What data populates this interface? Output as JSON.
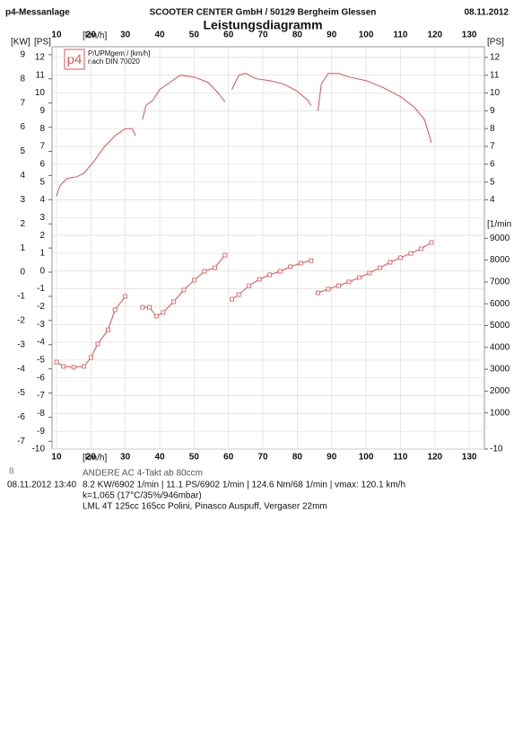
{
  "header": {
    "left": "p4-Messanlage",
    "center": "SCOOTER CENTER GmbH / 50129 Bergheim Glessen",
    "date": "08.11.2012"
  },
  "chart_data": {
    "type": "line",
    "title": "Leistungsdiagramm",
    "kw_label": "[KW]",
    "ps_label": "[PS]",
    "x_label": "[km/h]",
    "right_ps_label": "[PS]",
    "rpm_label": "[1/min",
    "legend": {
      "logo": "p4",
      "line1": "P/UPMgem / [km/h]",
      "line2": "nach DIN 70020"
    },
    "xlim": [
      8.7,
      134.4
    ],
    "xticks": [
      10,
      20,
      30,
      40,
      50,
      60,
      70,
      80,
      90,
      100,
      110,
      120,
      130
    ],
    "ylim": [
      -10,
      12.6
    ],
    "yticks": [
      -10,
      -9,
      -8,
      -7,
      -6,
      -5,
      -4,
      -3,
      -2,
      -1,
      0,
      1,
      2,
      3,
      4,
      5,
      6,
      7,
      8,
      9,
      10,
      11,
      12
    ],
    "right_yticks": [
      4,
      5,
      6,
      7,
      8,
      9,
      10,
      11,
      12,
      -10
    ],
    "kwlim": [
      -7.32,
      9.33
    ],
    "kwticks": [
      -7,
      -6,
      -5,
      -4,
      -3,
      -2,
      -1,
      0,
      1,
      2,
      3,
      4,
      5,
      6,
      7,
      8,
      9
    ],
    "y2lim": [
      -660,
      17780
    ],
    "y2ticks": [
      1000,
      2000,
      3000,
      4000,
      5000,
      6000,
      7000,
      8000,
      9000
    ],
    "grid": true,
    "series": [
      {
        "name": "P",
        "color": "#e0504f",
        "x": [
          10,
          11,
          13,
          16,
          18,
          21,
          24,
          27,
          30,
          32,
          33,
          34,
          35,
          36,
          38,
          40,
          43,
          46,
          50,
          54,
          57,
          59,
          60,
          61,
          63,
          65,
          68,
          72,
          76,
          80,
          83,
          84,
          85,
          86,
          87,
          89,
          92,
          95,
          100,
          105,
          110,
          114,
          117,
          119
        ],
        "values": [
          4.2,
          4.8,
          5.2,
          5.3,
          5.5,
          6.2,
          7,
          7.6,
          8,
          8,
          7.6,
          null,
          8.5,
          9.3,
          9.6,
          10.2,
          10.6,
          11,
          10.9,
          10.6,
          10,
          9.5,
          null,
          10.2,
          11,
          11.1,
          10.8,
          10.7,
          10.5,
          10.1,
          9.6,
          9.3,
          null,
          9,
          10.5,
          11.1,
          11.1,
          10.9,
          10.7,
          10.3,
          9.8,
          9.2,
          8.5,
          7.2
        ]
      },
      {
        "name": "UPM",
        "color": "#e0504f",
        "axis": "y2",
        "x": [
          10,
          12,
          15,
          18,
          20,
          22,
          25,
          27,
          30,
          33,
          35,
          37,
          39,
          41,
          44,
          47,
          50,
          53,
          56,
          59,
          60,
          61,
          63,
          66,
          69,
          72,
          75,
          78,
          81,
          84,
          85,
          86,
          89,
          92,
          95,
          98,
          101,
          104,
          107,
          110,
          113,
          116,
          119
        ],
        "values": [
          3330,
          3130,
          3090,
          3130,
          3540,
          4160,
          4810,
          5720,
          6340,
          null,
          5840,
          5840,
          5430,
          5600,
          6090,
          6630,
          7080,
          7490,
          7650,
          8230,
          null,
          6210,
          6420,
          6830,
          7120,
          7330,
          7490,
          7700,
          7860,
          7980,
          null,
          6500,
          6670,
          6830,
          7000,
          7200,
          7410,
          7650,
          7900,
          8110,
          8310,
          8520,
          8810
        ]
      }
    ]
  },
  "footer": {
    "num": "8",
    "class": "ANDERE AC 4-Takt ab 80ccm",
    "datetime": "08.11.2012  13:40",
    "result": "8.2 KW/6902 1/min  |  11.1 PS/6902 1/min  |  124.6 Nm/68 1/min |  vmax: 120.1 km/h",
    "k": "k=1,065 (17°C/35%/946mbar)",
    "vehicle": "LML 4T 125cc 165cc Polini, Pinasco Auspuff, Vergaser 22mm"
  }
}
